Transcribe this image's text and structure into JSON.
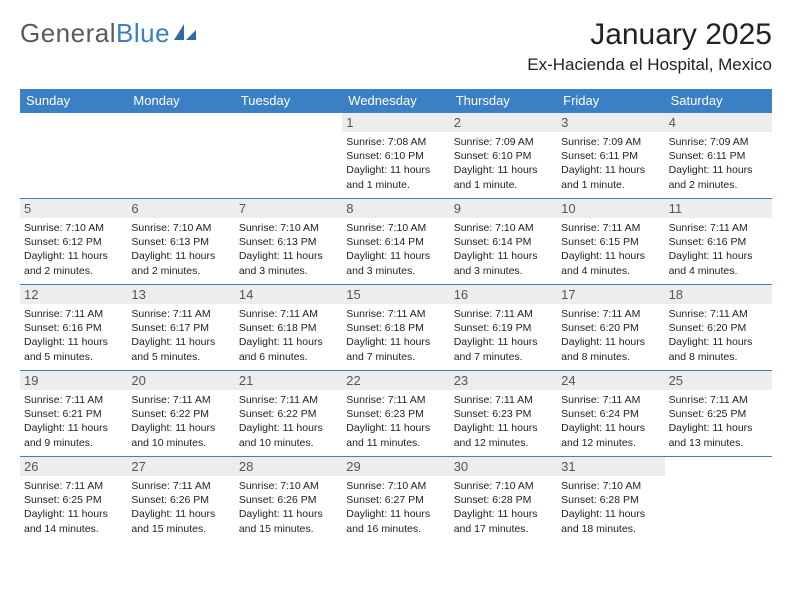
{
  "logo": {
    "text1": "General",
    "text2": "Blue"
  },
  "title": "January 2025",
  "location": "Ex-Hacienda el Hospital, Mexico",
  "day_header_bg": "#3b7fc4",
  "day_header_color": "#ffffff",
  "daynum_bg": "#ededed",
  "week_border_color": "#3b7fc4",
  "days": [
    "Sunday",
    "Monday",
    "Tuesday",
    "Wednesday",
    "Thursday",
    "Friday",
    "Saturday"
  ],
  "weeks": [
    [
      null,
      null,
      null,
      {
        "n": "1",
        "sr": "7:08 AM",
        "ss": "6:10 PM",
        "dl": "11 hours and 1 minute."
      },
      {
        "n": "2",
        "sr": "7:09 AM",
        "ss": "6:10 PM",
        "dl": "11 hours and 1 minute."
      },
      {
        "n": "3",
        "sr": "7:09 AM",
        "ss": "6:11 PM",
        "dl": "11 hours and 1 minute."
      },
      {
        "n": "4",
        "sr": "7:09 AM",
        "ss": "6:11 PM",
        "dl": "11 hours and 2 minutes."
      }
    ],
    [
      {
        "n": "5",
        "sr": "7:10 AM",
        "ss": "6:12 PM",
        "dl": "11 hours and 2 minutes."
      },
      {
        "n": "6",
        "sr": "7:10 AM",
        "ss": "6:13 PM",
        "dl": "11 hours and 2 minutes."
      },
      {
        "n": "7",
        "sr": "7:10 AM",
        "ss": "6:13 PM",
        "dl": "11 hours and 3 minutes."
      },
      {
        "n": "8",
        "sr": "7:10 AM",
        "ss": "6:14 PM",
        "dl": "11 hours and 3 minutes."
      },
      {
        "n": "9",
        "sr": "7:10 AM",
        "ss": "6:14 PM",
        "dl": "11 hours and 3 minutes."
      },
      {
        "n": "10",
        "sr": "7:11 AM",
        "ss": "6:15 PM",
        "dl": "11 hours and 4 minutes."
      },
      {
        "n": "11",
        "sr": "7:11 AM",
        "ss": "6:16 PM",
        "dl": "11 hours and 4 minutes."
      }
    ],
    [
      {
        "n": "12",
        "sr": "7:11 AM",
        "ss": "6:16 PM",
        "dl": "11 hours and 5 minutes."
      },
      {
        "n": "13",
        "sr": "7:11 AM",
        "ss": "6:17 PM",
        "dl": "11 hours and 5 minutes."
      },
      {
        "n": "14",
        "sr": "7:11 AM",
        "ss": "6:18 PM",
        "dl": "11 hours and 6 minutes."
      },
      {
        "n": "15",
        "sr": "7:11 AM",
        "ss": "6:18 PM",
        "dl": "11 hours and 7 minutes."
      },
      {
        "n": "16",
        "sr": "7:11 AM",
        "ss": "6:19 PM",
        "dl": "11 hours and 7 minutes."
      },
      {
        "n": "17",
        "sr": "7:11 AM",
        "ss": "6:20 PM",
        "dl": "11 hours and 8 minutes."
      },
      {
        "n": "18",
        "sr": "7:11 AM",
        "ss": "6:20 PM",
        "dl": "11 hours and 8 minutes."
      }
    ],
    [
      {
        "n": "19",
        "sr": "7:11 AM",
        "ss": "6:21 PM",
        "dl": "11 hours and 9 minutes."
      },
      {
        "n": "20",
        "sr": "7:11 AM",
        "ss": "6:22 PM",
        "dl": "11 hours and 10 minutes."
      },
      {
        "n": "21",
        "sr": "7:11 AM",
        "ss": "6:22 PM",
        "dl": "11 hours and 10 minutes."
      },
      {
        "n": "22",
        "sr": "7:11 AM",
        "ss": "6:23 PM",
        "dl": "11 hours and 11 minutes."
      },
      {
        "n": "23",
        "sr": "7:11 AM",
        "ss": "6:23 PM",
        "dl": "11 hours and 12 minutes."
      },
      {
        "n": "24",
        "sr": "7:11 AM",
        "ss": "6:24 PM",
        "dl": "11 hours and 12 minutes."
      },
      {
        "n": "25",
        "sr": "7:11 AM",
        "ss": "6:25 PM",
        "dl": "11 hours and 13 minutes."
      }
    ],
    [
      {
        "n": "26",
        "sr": "7:11 AM",
        "ss": "6:25 PM",
        "dl": "11 hours and 14 minutes."
      },
      {
        "n": "27",
        "sr": "7:11 AM",
        "ss": "6:26 PM",
        "dl": "11 hours and 15 minutes."
      },
      {
        "n": "28",
        "sr": "7:10 AM",
        "ss": "6:26 PM",
        "dl": "11 hours and 15 minutes."
      },
      {
        "n": "29",
        "sr": "7:10 AM",
        "ss": "6:27 PM",
        "dl": "11 hours and 16 minutes."
      },
      {
        "n": "30",
        "sr": "7:10 AM",
        "ss": "6:28 PM",
        "dl": "11 hours and 17 minutes."
      },
      {
        "n": "31",
        "sr": "7:10 AM",
        "ss": "6:28 PM",
        "dl": "11 hours and 18 minutes."
      },
      null
    ]
  ]
}
